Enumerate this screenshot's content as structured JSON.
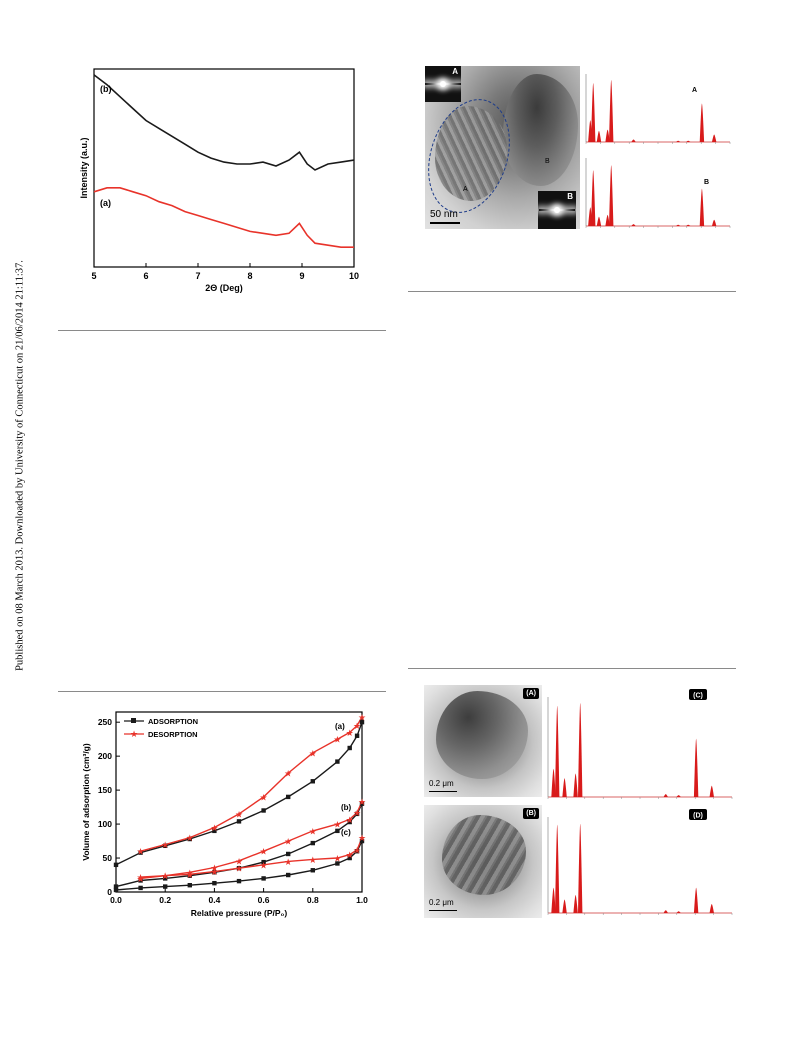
{
  "side_stamp": "Published on 08 March 2013. Downloaded by University of Connecticut on 21/06/2014 21:11:37.",
  "xrd": {
    "xlabel": "2Θ (Deg)",
    "ylabel": "Intensity (a.u.)",
    "xticks": [
      "5",
      "6",
      "7",
      "8",
      "9",
      "10"
    ],
    "curves": [
      {
        "name": "(b)",
        "color": "#1a1a1a",
        "x": [
          5.0,
          5.25,
          5.5,
          5.75,
          6.0,
          6.25,
          6.5,
          6.75,
          7.0,
          7.25,
          7.5,
          7.75,
          8.0,
          8.25,
          8.5,
          8.75,
          8.95,
          9.1,
          9.25,
          9.5,
          9.75,
          10.0
        ],
        "y": [
          0.97,
          0.92,
          0.86,
          0.8,
          0.74,
          0.7,
          0.66,
          0.62,
          0.58,
          0.55,
          0.53,
          0.52,
          0.52,
          0.53,
          0.51,
          0.54,
          0.58,
          0.52,
          0.49,
          0.52,
          0.53,
          0.54
        ]
      },
      {
        "name": "(a)",
        "color": "#e8332a",
        "x": [
          5.0,
          5.25,
          5.5,
          5.75,
          6.0,
          6.25,
          6.5,
          6.75,
          7.0,
          7.25,
          7.5,
          7.75,
          8.0,
          8.25,
          8.5,
          8.75,
          8.95,
          9.1,
          9.25,
          9.5,
          9.75,
          10.0
        ],
        "y": [
          0.38,
          0.4,
          0.4,
          0.38,
          0.36,
          0.33,
          0.31,
          0.28,
          0.26,
          0.24,
          0.22,
          0.2,
          0.18,
          0.17,
          0.16,
          0.17,
          0.22,
          0.16,
          0.12,
          0.11,
          0.1,
          0.1
        ]
      }
    ]
  },
  "bet": {
    "type": "line",
    "xlabel": "Relative pressure (P/P₀)",
    "ylabel": "Volume of adsorption (cm³/g)",
    "xticks": [
      0.0,
      0.2,
      0.4,
      0.6,
      0.8,
      1.0
    ],
    "yticks": [
      0,
      50,
      100,
      150,
      200,
      250
    ],
    "xlim": [
      0.0,
      1.0
    ],
    "ylim": [
      0,
      265
    ],
    "legend": [
      "ADSORPTION",
      "DESORPTION"
    ],
    "adsorption_color": "#1a1a1a",
    "desorption_color": "#e8332a",
    "x": [
      0.0,
      0.1,
      0.2,
      0.3,
      0.4,
      0.5,
      0.6,
      0.7,
      0.8,
      0.9,
      0.95,
      0.98,
      1.0
    ],
    "series": [
      {
        "name": "(a)",
        "adsorption": [
          40,
          58,
          68,
          78,
          90,
          104,
          120,
          140,
          163,
          192,
          212,
          230,
          250
        ],
        "desorption": [
          null,
          60,
          70,
          80,
          95,
          115,
          140,
          175,
          205,
          225,
          235,
          245,
          258
        ]
      },
      {
        "name": "(b)",
        "adsorption": [
          8,
          17,
          20,
          24,
          29,
          35,
          44,
          56,
          72,
          90,
          103,
          115,
          130
        ],
        "desorption": [
          null,
          20,
          24,
          29,
          36,
          46,
          60,
          75,
          90,
          100,
          107,
          117,
          133
        ]
      },
      {
        "name": "(c)",
        "adsorption": [
          3,
          6,
          8,
          10,
          13,
          16,
          20,
          25,
          32,
          42,
          50,
          60,
          75
        ],
        "desorption": [
          null,
          22,
          24,
          26,
          30,
          35,
          40,
          45,
          48,
          50,
          55,
          62,
          80
        ]
      }
    ]
  },
  "tem_top": {
    "scale_label": "50 nm",
    "regions": [
      "A",
      "B"
    ],
    "saed_labels": [
      "A",
      "B"
    ],
    "edx_labels": [
      "A",
      "B"
    ]
  },
  "tem_bottom": {
    "panel_labels": [
      "(A)",
      "(B)",
      "(C)",
      "(D)"
    ],
    "scale_labels": [
      "0.2 μm",
      "0.2 μm"
    ]
  },
  "edx": {
    "peak_color": "#d81b1b",
    "spectra": [
      {
        "name": "A",
        "peaks": [
          {
            "e": 0.3,
            "h": 0.35
          },
          {
            "e": 0.5,
            "h": 0.95
          },
          {
            "e": 0.9,
            "h": 0.18
          },
          {
            "e": 1.5,
            "h": 0.2
          },
          {
            "e": 1.75,
            "h": 1.0
          },
          {
            "e": 3.3,
            "h": 0.04
          },
          {
            "e": 6.4,
            "h": 0.02
          },
          {
            "e": 7.1,
            "h": 0.02
          },
          {
            "e": 8.05,
            "h": 0.62
          },
          {
            "e": 8.9,
            "h": 0.12
          }
        ]
      },
      {
        "name": "B",
        "peaks": [
          {
            "e": 0.3,
            "h": 0.3
          },
          {
            "e": 0.5,
            "h": 0.9
          },
          {
            "e": 0.9,
            "h": 0.15
          },
          {
            "e": 1.5,
            "h": 0.18
          },
          {
            "e": 1.75,
            "h": 0.98
          },
          {
            "e": 3.3,
            "h": 0.03
          },
          {
            "e": 6.4,
            "h": 0.02
          },
          {
            "e": 7.1,
            "h": 0.02
          },
          {
            "e": 8.05,
            "h": 0.6
          },
          {
            "e": 8.9,
            "h": 0.1
          }
        ]
      },
      {
        "name": "C",
        "peaks": [
          {
            "e": 0.3,
            "h": 0.3
          },
          {
            "e": 0.5,
            "h": 0.97
          },
          {
            "e": 0.9,
            "h": 0.2
          },
          {
            "e": 1.5,
            "h": 0.25
          },
          {
            "e": 1.75,
            "h": 1.0
          },
          {
            "e": 6.4,
            "h": 0.03
          },
          {
            "e": 7.1,
            "h": 0.02
          },
          {
            "e": 8.05,
            "h": 0.62
          },
          {
            "e": 8.9,
            "h": 0.12
          }
        ]
      },
      {
        "name": "D",
        "peaks": [
          {
            "e": 0.3,
            "h": 0.28
          },
          {
            "e": 0.5,
            "h": 0.98
          },
          {
            "e": 0.9,
            "h": 0.15
          },
          {
            "e": 1.5,
            "h": 0.2
          },
          {
            "e": 1.75,
            "h": 0.99
          },
          {
            "e": 6.4,
            "h": 0.03
          },
          {
            "e": 7.1,
            "h": 0.02
          },
          {
            "e": 8.05,
            "h": 0.28
          },
          {
            "e": 8.9,
            "h": 0.1
          }
        ]
      }
    ]
  }
}
